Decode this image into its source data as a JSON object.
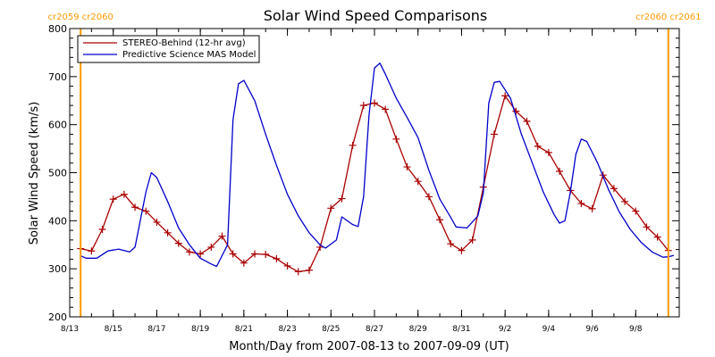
{
  "chart_data": {
    "type": "line",
    "title": "Solar Wind Speed Comparisons",
    "xlabel": "Month/Day from 2007-08-13 to 2007-09-09 (UT)",
    "ylabel": "Solar Wind Speed (km/s)",
    "ylim": [
      200,
      800
    ],
    "yticks": [
      200,
      300,
      400,
      500,
      600,
      700,
      800
    ],
    "xlim": [
      "2007-08-13",
      "2007-09-09"
    ],
    "xticks": [
      {
        "date": "2007-08-13",
        "label": "8/13"
      },
      {
        "date": "2007-08-15",
        "label": "8/15"
      },
      {
        "date": "2007-08-17",
        "label": "8/17"
      },
      {
        "date": "2007-08-19",
        "label": "8/19"
      },
      {
        "date": "2007-08-21",
        "label": "8/21"
      },
      {
        "date": "2007-08-23",
        "label": "8/23"
      },
      {
        "date": "2007-08-25",
        "label": "8/25"
      },
      {
        "date": "2007-08-27",
        "label": "8/27"
      },
      {
        "date": "2007-08-29",
        "label": "8/29"
      },
      {
        "date": "2007-08-31",
        "label": "8/31"
      },
      {
        "date": "2007-09-02",
        "label": "9/2"
      },
      {
        "date": "2007-09-04",
        "label": "9/4"
      },
      {
        "date": "2007-09-06",
        "label": "9/6"
      },
      {
        "date": "2007-09-08",
        "label": "9/8"
      }
    ],
    "carrington_markers": [
      {
        "date": "2007-08-13 12:00",
        "label": "cr2059 cr2060",
        "color": "#ff9900"
      },
      {
        "date": "2007-09-09 12:00",
        "label": "cr2060 cr2061",
        "color": "#ff9900"
      }
    ],
    "legend_position": "top-left",
    "series": [
      {
        "name": "STEREO-Behind (12-hr avg)",
        "color": "#aa0000",
        "marker": "plus",
        "points": [
          [
            "2007-08-13 12:00",
            342
          ],
          [
            "2007-08-14 00:00",
            337
          ],
          [
            "2007-08-14 12:00",
            382
          ],
          [
            "2007-08-15 00:00",
            445
          ],
          [
            "2007-08-15 12:00",
            455
          ],
          [
            "2007-08-16 00:00",
            428
          ],
          [
            "2007-08-16 12:00",
            420
          ],
          [
            "2007-08-17 00:00",
            397
          ],
          [
            "2007-08-17 12:00",
            375
          ],
          [
            "2007-08-18 00:00",
            353
          ],
          [
            "2007-08-18 12:00",
            335
          ],
          [
            "2007-08-19 00:00",
            331
          ],
          [
            "2007-08-19 12:00",
            345
          ],
          [
            "2007-08-20 00:00",
            368
          ],
          [
            "2007-08-20 12:00",
            331
          ],
          [
            "2007-08-21 00:00",
            312
          ],
          [
            "2007-08-21 12:00",
            331
          ],
          [
            "2007-08-22 00:00",
            330
          ],
          [
            "2007-08-22 12:00",
            321
          ],
          [
            "2007-08-23 00:00",
            306
          ],
          [
            "2007-08-23 12:00",
            294
          ],
          [
            "2007-08-24 00:00",
            297
          ],
          [
            "2007-08-24 12:00",
            345
          ],
          [
            "2007-08-25 00:00",
            426
          ],
          [
            "2007-08-25 12:00",
            446
          ],
          [
            "2007-08-26 00:00",
            557
          ],
          [
            "2007-08-26 12:00",
            640
          ],
          [
            "2007-08-27 00:00",
            645
          ],
          [
            "2007-08-27 12:00",
            632
          ],
          [
            "2007-08-28 00:00",
            570
          ],
          [
            "2007-08-28 12:00",
            512
          ],
          [
            "2007-08-29 00:00",
            482
          ],
          [
            "2007-08-29 12:00",
            450
          ],
          [
            "2007-08-30 00:00",
            402
          ],
          [
            "2007-08-30 12:00",
            352
          ],
          [
            "2007-08-31 00:00",
            338
          ],
          [
            "2007-08-31 12:00",
            360
          ],
          [
            "2007-09-01 00:00",
            470
          ],
          [
            "2007-09-01 12:00",
            580
          ],
          [
            "2007-09-02 00:00",
            660
          ],
          [
            "2007-09-02 12:00",
            628
          ],
          [
            "2007-09-03 00:00",
            607
          ],
          [
            "2007-09-03 12:00",
            555
          ],
          [
            "2007-09-04 00:00",
            542
          ],
          [
            "2007-09-04 12:00",
            503
          ],
          [
            "2007-09-05 00:00",
            463
          ],
          [
            "2007-09-05 12:00",
            436
          ],
          [
            "2007-09-06 00:00",
            425
          ],
          [
            "2007-09-06 12:00",
            495
          ],
          [
            "2007-09-07 00:00",
            467
          ],
          [
            "2007-09-07 12:00",
            440
          ],
          [
            "2007-09-08 00:00",
            420
          ],
          [
            "2007-09-08 12:00",
            387
          ],
          [
            "2007-09-09 00:00",
            366
          ],
          [
            "2007-09-09 12:00",
            338
          ]
        ]
      },
      {
        "name": "Predictive Science MAS Model",
        "color": "#0000cc",
        "marker": "none",
        "points": [
          [
            "2007-08-13 12:00",
            327
          ],
          [
            "2007-08-13 18:00",
            322
          ],
          [
            "2007-08-14 06:00",
            322
          ],
          [
            "2007-08-14 18:00",
            337
          ],
          [
            "2007-08-15 06:00",
            341
          ],
          [
            "2007-08-15 18:00",
            335
          ],
          [
            "2007-08-16 00:00",
            345
          ],
          [
            "2007-08-16 12:00",
            460
          ],
          [
            "2007-08-16 18:00",
            500
          ],
          [
            "2007-08-17 00:00",
            490
          ],
          [
            "2007-08-17 12:00",
            440
          ],
          [
            "2007-08-18 00:00",
            385
          ],
          [
            "2007-08-18 12:00",
            350
          ],
          [
            "2007-08-19 00:00",
            322
          ],
          [
            "2007-08-19 12:00",
            310
          ],
          [
            "2007-08-19 18:00",
            305
          ],
          [
            "2007-08-20 06:00",
            350
          ],
          [
            "2007-08-20 12:00",
            610
          ],
          [
            "2007-08-20 18:00",
            685
          ],
          [
            "2007-08-21 00:00",
            692
          ],
          [
            "2007-08-21 12:00",
            650
          ],
          [
            "2007-08-22 00:00",
            580
          ],
          [
            "2007-08-22 12:00",
            515
          ],
          [
            "2007-08-23 00:00",
            455
          ],
          [
            "2007-08-23 12:00",
            410
          ],
          [
            "2007-08-24 00:00",
            375
          ],
          [
            "2007-08-24 12:00",
            350
          ],
          [
            "2007-08-24 18:00",
            343
          ],
          [
            "2007-08-25 06:00",
            360
          ],
          [
            "2007-08-25 12:00",
            408
          ],
          [
            "2007-08-26 00:00",
            392
          ],
          [
            "2007-08-26 06:00",
            388
          ],
          [
            "2007-08-26 12:00",
            450
          ],
          [
            "2007-08-26 18:00",
            620
          ],
          [
            "2007-08-27 00:00",
            718
          ],
          [
            "2007-08-27 06:00",
            728
          ],
          [
            "2007-08-27 12:00",
            705
          ],
          [
            "2007-08-28 00:00",
            655
          ],
          [
            "2007-08-28 12:00",
            615
          ],
          [
            "2007-08-29 00:00",
            573
          ],
          [
            "2007-08-29 12:00",
            505
          ],
          [
            "2007-08-30 00:00",
            445
          ],
          [
            "2007-08-30 12:00",
            407
          ],
          [
            "2007-08-30 18:00",
            387
          ],
          [
            "2007-08-31 06:00",
            385
          ],
          [
            "2007-08-31 18:00",
            410
          ],
          [
            "2007-09-01 00:00",
            458
          ],
          [
            "2007-09-01 06:00",
            645
          ],
          [
            "2007-09-01 12:00",
            688
          ],
          [
            "2007-09-01 18:00",
            690
          ],
          [
            "2007-09-02 06:00",
            655
          ],
          [
            "2007-09-02 18:00",
            580
          ],
          [
            "2007-09-03 06:00",
            520
          ],
          [
            "2007-09-03 18:00",
            460
          ],
          [
            "2007-09-04 06:00",
            413
          ],
          [
            "2007-09-04 12:00",
            395
          ],
          [
            "2007-09-04 18:00",
            400
          ],
          [
            "2007-09-05 00:00",
            460
          ],
          [
            "2007-09-05 06:00",
            538
          ],
          [
            "2007-09-05 12:00",
            570
          ],
          [
            "2007-09-05 18:00",
            565
          ],
          [
            "2007-09-06 06:00",
            520
          ],
          [
            "2007-09-06 18:00",
            465
          ],
          [
            "2007-09-07 06:00",
            418
          ],
          [
            "2007-09-07 18:00",
            382
          ],
          [
            "2007-09-08 06:00",
            355
          ],
          [
            "2007-09-08 18:00",
            335
          ],
          [
            "2007-09-09 06:00",
            324
          ],
          [
            "2007-09-09 12:00",
            325
          ],
          [
            "2007-09-09 18:00",
            328
          ]
        ]
      }
    ]
  }
}
